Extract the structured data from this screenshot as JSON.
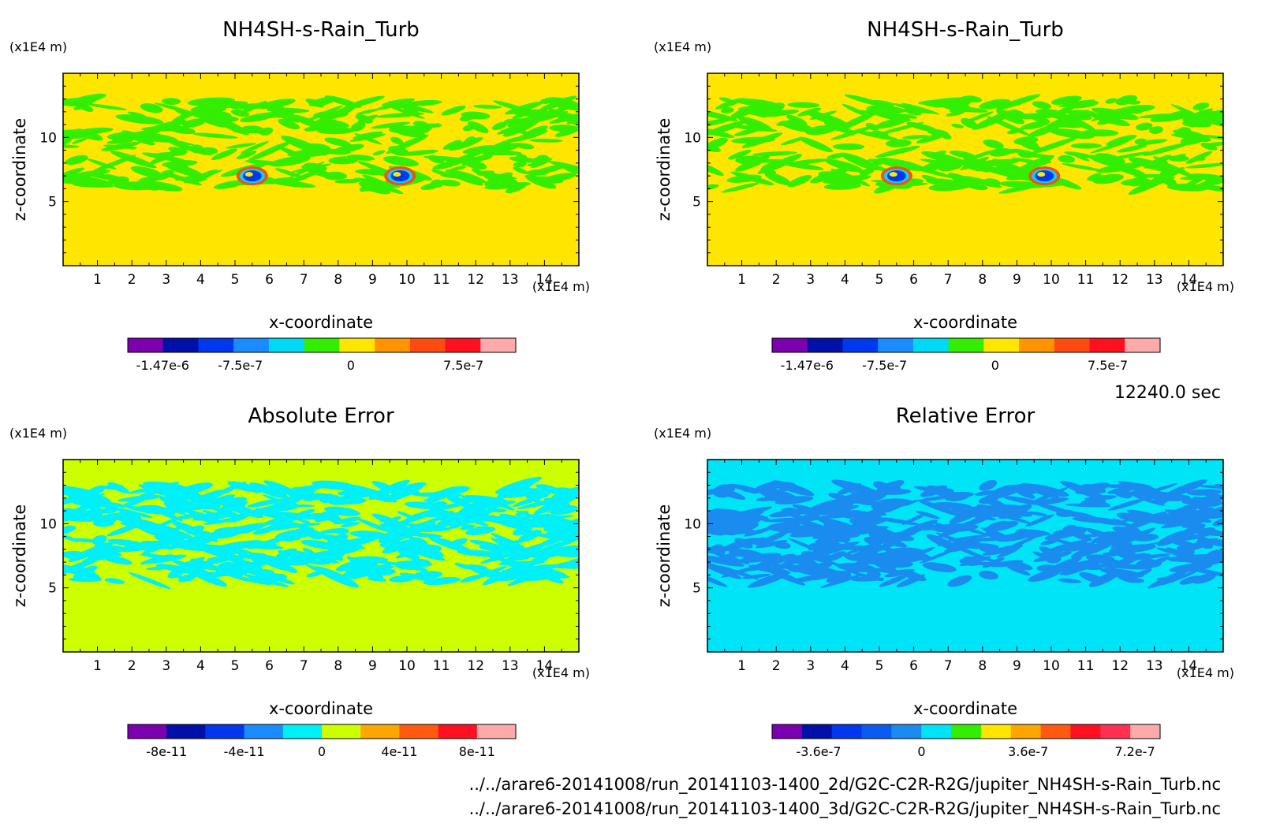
{
  "time_label": "12240.0 sec",
  "footer": {
    "line1": "../../arare6-20141008/run_20141103-1400_2d/G2C-C2R-R2G/jupiter_NH4SH-s-Rain_Turb.nc",
    "line2": "../../arare6-20141008/run_20141103-1400_3d/G2C-C2R-R2G/jupiter_NH4SH-s-Rain_Turb.nc"
  },
  "chart_data": [
    {
      "type": "heatmap",
      "title": "NH4SH-s-Rain_Turb",
      "xlabel": "x-coordinate",
      "ylabel": "z-coordinate",
      "x_unit": "(x1E4 m)",
      "y_unit": "(x1E4 m)",
      "xlim": [
        0,
        15
      ],
      "ylim": [
        0,
        15
      ],
      "x_ticks": [
        "1",
        "2",
        "3",
        "4",
        "5",
        "6",
        "7",
        "8",
        "9",
        "10",
        "11",
        "12",
        "13",
        "14"
      ],
      "y_ticks": [
        "5",
        "10"
      ],
      "background_color": "#ffe600",
      "band_color": "#33ee00",
      "features": "turbulent band z≈6-13, two storm cells near x≈5.5 and x≈9.8, z≈7",
      "colorbar": {
        "colors": [
          "#7a00b0",
          "#0010a8",
          "#0038f0",
          "#1a8cff",
          "#00d8f8",
          "#33ee00",
          "#ffe600",
          "#ff9400",
          "#ff4a10",
          "#ff1020",
          "#ffaaaa"
        ],
        "tick_labels": [
          "-1.47e-6",
          "-7.5e-7",
          "0",
          "7.5e-7"
        ]
      }
    },
    {
      "type": "heatmap",
      "title": "NH4SH-s-Rain_Turb",
      "xlabel": "x-coordinate",
      "ylabel": "z-coordinate",
      "x_unit": "(x1E4 m)",
      "y_unit": "(x1E4 m)",
      "xlim": [
        0,
        15
      ],
      "ylim": [
        0,
        15
      ],
      "x_ticks": [
        "1",
        "2",
        "3",
        "4",
        "5",
        "6",
        "7",
        "8",
        "9",
        "10",
        "11",
        "12",
        "13",
        "14"
      ],
      "y_ticks": [
        "5",
        "10"
      ],
      "background_color": "#ffe600",
      "band_color": "#33ee00",
      "features": "turbulent band z≈6-13, two storm cells near x≈5.5 and x≈9.8, z≈7",
      "colorbar": {
        "colors": [
          "#7a00b0",
          "#0010a8",
          "#0038f0",
          "#1a8cff",
          "#00d8f8",
          "#33ee00",
          "#ffe600",
          "#ff9400",
          "#ff4a10",
          "#ff1020",
          "#ffaaaa"
        ],
        "tick_labels": [
          "-1.47e-6",
          "-7.5e-7",
          "0",
          "7.5e-7"
        ]
      }
    },
    {
      "type": "heatmap",
      "title": "Absolute Error",
      "xlabel": "x-coordinate",
      "ylabel": "z-coordinate",
      "x_unit": "(x1E4 m)",
      "y_unit": "(x1E4 m)",
      "xlim": [
        0,
        15
      ],
      "ylim": [
        0,
        15
      ],
      "x_ticks": [
        "1",
        "2",
        "3",
        "4",
        "5",
        "6",
        "7",
        "8",
        "9",
        "10",
        "11",
        "12",
        "13",
        "14"
      ],
      "y_ticks": [
        "5",
        "10"
      ],
      "background_color": "#ccff00",
      "band_color": "#00f0f8",
      "features": "turbulent band z≈5.5-13",
      "colorbar": {
        "colors": [
          "#7a00b0",
          "#0010a8",
          "#0038f0",
          "#1a8cff",
          "#00f0f8",
          "#ccff00",
          "#ffa500",
          "#ff5a10",
          "#ff1020",
          "#ffaaaa"
        ],
        "tick_labels": [
          "-8e-11",
          "-4e-11",
          "0",
          "4e-11",
          "8e-11"
        ]
      }
    },
    {
      "type": "heatmap",
      "title": "Relative Error",
      "xlabel": "x-coordinate",
      "ylabel": "z-coordinate",
      "x_unit": "(x1E4 m)",
      "y_unit": "(x1E4 m)",
      "xlim": [
        0,
        15
      ],
      "ylim": [
        0,
        15
      ],
      "x_ticks": [
        "1",
        "2",
        "3",
        "4",
        "5",
        "6",
        "7",
        "8",
        "9",
        "10",
        "11",
        "12",
        "13",
        "14"
      ],
      "y_ticks": [
        "5",
        "10"
      ],
      "background_color": "#00e4f8",
      "band_color": "#1a8cf0",
      "features": "turbulent band z≈5.5-13",
      "colorbar": {
        "colors": [
          "#7a00b0",
          "#0010a8",
          "#0038f0",
          "#0a5cf0",
          "#1a8cf0",
          "#00e4f8",
          "#33ee00",
          "#ffe600",
          "#ffa500",
          "#ff5a10",
          "#ff1020",
          "#ff3050",
          "#ffaaaa"
        ],
        "tick_labels": [
          "-3.6e-7",
          "0",
          "3.6e-7",
          "7.2e-7"
        ]
      }
    }
  ]
}
